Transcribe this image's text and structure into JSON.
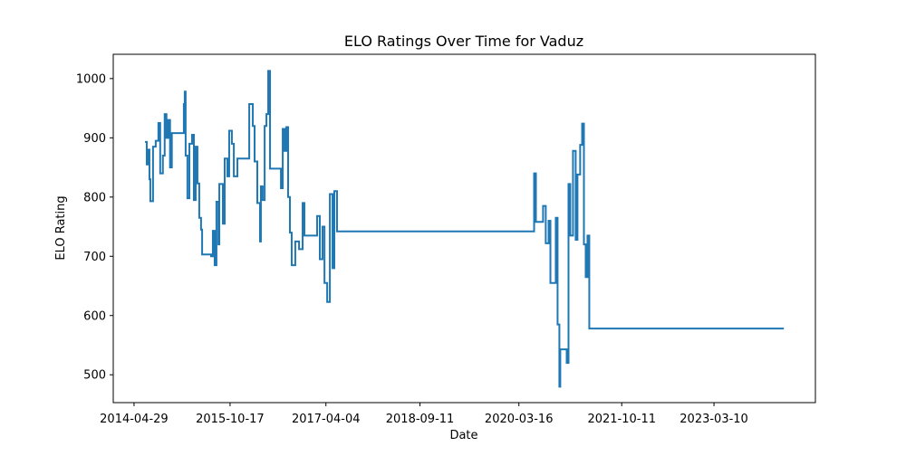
{
  "chart_data": {
    "type": "line",
    "title": "ELO Ratings Over Time for Vaduz",
    "x_label": "Date",
    "y_label": "ELO Rating",
    "drawstyle": "steps-post",
    "x": [
      "2014-06-29",
      "2014-07-09",
      "2014-07-19",
      "2014-07-24",
      "2014-07-29",
      "2014-08-13",
      "2014-08-28",
      "2014-09-12",
      "2014-09-22",
      "2014-10-07",
      "2014-10-17",
      "2014-10-27",
      "2014-11-06",
      "2014-11-16",
      "2014-11-26",
      "2015-02-01",
      "2015-02-06",
      "2015-02-11",
      "2015-02-21",
      "2015-03-04",
      "2015-03-19",
      "2015-03-29",
      "2015-04-08",
      "2015-04-18",
      "2015-04-28",
      "2015-05-08",
      "2015-05-14",
      "2015-07-03",
      "2015-07-13",
      "2015-07-23",
      "2015-08-02",
      "2015-08-13",
      "2015-08-18",
      "2015-09-07",
      "2015-09-17",
      "2015-10-02",
      "2015-10-12",
      "2015-10-27",
      "2015-11-07",
      "2015-11-27",
      "2016-02-01",
      "2016-02-21",
      "2016-03-02",
      "2016-03-17",
      "2016-04-01",
      "2016-04-06",
      "2016-04-16",
      "2016-04-27",
      "2016-05-07",
      "2016-05-17",
      "2016-05-27",
      "2016-07-27",
      "2016-08-06",
      "2016-08-16",
      "2016-08-26",
      "2016-09-05",
      "2016-09-15",
      "2016-09-25",
      "2016-10-15",
      "2016-11-05",
      "2016-11-25",
      "2016-12-05",
      "2017-02-14",
      "2017-03-01",
      "2017-03-16",
      "2017-03-27",
      "2017-04-11",
      "2017-04-26",
      "2017-05-11",
      "2017-05-21",
      "2017-06-05",
      "2020-06-09",
      "2020-06-19",
      "2020-07-29",
      "2020-08-13",
      "2020-08-29",
      "2020-09-08",
      "2020-10-08",
      "2020-10-18",
      "2020-10-28",
      "2020-11-02",
      "2020-12-08",
      "2020-12-18",
      "2020-12-28",
      "2021-01-12",
      "2021-01-27",
      "2021-02-06",
      "2021-02-21",
      "2021-03-04",
      "2021-03-14",
      "2021-03-24",
      "2021-04-03",
      "2021-04-13",
      "2024-04-03"
    ],
    "series": [
      {
        "name": "Vaduz",
        "color": "#1f77b4",
        "values": [
          893,
          855,
          880,
          830,
          793,
          885,
          895,
          925,
          840,
          870,
          940,
          900,
          930,
          850,
          908,
          957,
          978,
          870,
          798,
          890,
          905,
          795,
          885,
          823,
          765,
          745,
          703,
          700,
          743,
          685,
          792,
          720,
          822,
          755,
          865,
          835,
          912,
          890,
          835,
          865,
          957,
          920,
          860,
          790,
          725,
          818,
          795,
          920,
          940,
          1013,
          848,
          815,
          915,
          878,
          918,
          800,
          740,
          685,
          725,
          712,
          790,
          735,
          768,
          695,
          750,
          655,
          623,
          805,
          680,
          810,
          742,
          840,
          758,
          785,
          722,
          760,
          655,
          765,
          585,
          480,
          543,
          520,
          822,
          735,
          878,
          728,
          838,
          888,
          924,
          720,
          665,
          735,
          578,
          578
        ]
      }
    ],
    "xlim": [
      "2014-01-03",
      "2024-09-26"
    ],
    "xticks": [
      "2014-04-29",
      "2015-10-17",
      "2017-04-04",
      "2018-09-11",
      "2020-03-16",
      "2021-10-11",
      "2023-03-10"
    ],
    "ylim": [
      453,
      1041
    ],
    "yticks": [
      500,
      600,
      700,
      800,
      900,
      1000
    ]
  }
}
